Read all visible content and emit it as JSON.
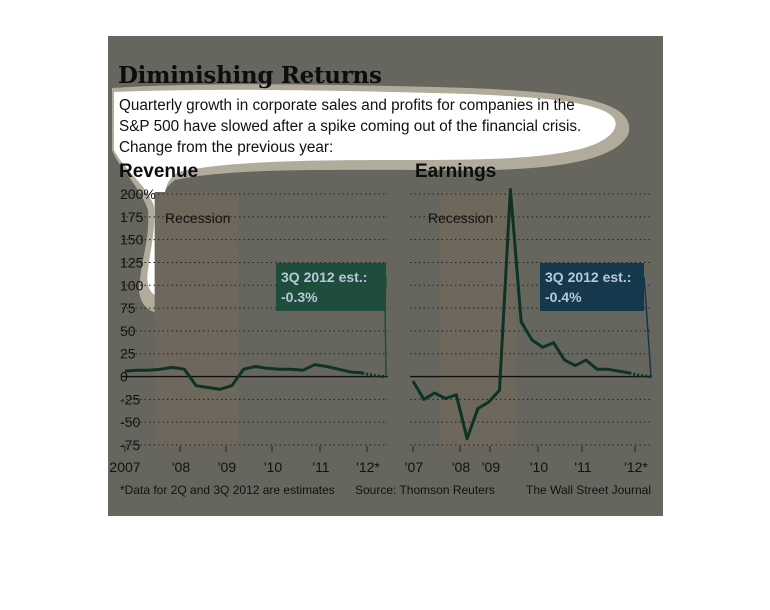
{
  "header": {
    "title": "Diminishing Returns",
    "subtitle_line1": "Quarterly growth in corporate sales and profits for companies in the",
    "subtitle_line2": "S&P 500 have slowed after a spike coming out of the financial crisis.",
    "subtitle_line3": "Change from the previous year:"
  },
  "footer": {
    "note": "*Data for 2Q and 3Q 2012 are estimates",
    "source": "Source: Thomson Reuters",
    "credit": "The Wall Street Journal"
  },
  "colors": {
    "panel_background": "#66665e",
    "recession_band": "#6e675c",
    "line": "#0d3326",
    "callout_revenue": "#1e4d3b",
    "callout_earnings": "#16384d",
    "callout_text": "#b8c8d8"
  },
  "chart_data": [
    {
      "type": "line",
      "title": "Revenue",
      "ylim": [
        -75,
        200
      ],
      "y_ticks": [
        200,
        175,
        150,
        125,
        100,
        75,
        50,
        25,
        0,
        -25,
        -50,
        -75
      ],
      "y_tick_labels": [
        "200%",
        "175",
        "150",
        "125",
        "100",
        "75",
        "50",
        "25",
        "0",
        "-25",
        "-50",
        "-75"
      ],
      "x_tick_labels": [
        "2007",
        "'08",
        "'09",
        "'10",
        "'11",
        "'12*"
      ],
      "shaded_region": {
        "label": "Recession",
        "from": "2007 Q4",
        "to": "2009 Q2"
      },
      "annotation": {
        "label": "3Q 2012 est.:",
        "value": "-0.3%"
      },
      "grid": true,
      "series": [
        {
          "x": [
            "2007 Q1",
            "2007 Q2",
            "2007 Q3",
            "2007 Q4",
            "2008 Q1",
            "2008 Q2",
            "2008 Q3",
            "2008 Q4",
            "2009 Q1",
            "2009 Q2",
            "2009 Q3",
            "2009 Q4",
            "2010 Q1",
            "2010 Q2",
            "2010 Q3",
            "2010 Q4",
            "2011 Q1",
            "2011 Q2",
            "2011 Q3",
            "2011 Q4",
            "2012 Q1",
            "2012 Q2",
            "2012 Q3"
          ],
          "y": [
            6,
            7,
            7,
            8,
            10,
            8,
            -10,
            -12,
            -14,
            -10,
            8,
            11,
            9,
            8,
            8,
            7,
            13,
            11,
            8,
            5,
            4,
            1,
            -0.3
          ],
          "estimated_from": "2012 Q2"
        }
      ]
    },
    {
      "type": "line",
      "title": "Earnings",
      "ylim": [
        -75,
        200
      ],
      "x_tick_labels": [
        "'07",
        "'08",
        "'09",
        "'10",
        "'11",
        "'12*"
      ],
      "shaded_region": {
        "label": "Recession",
        "from": "2007 Q4",
        "to": "2009 Q2"
      },
      "annotation": {
        "label": "3Q 2012 est.:",
        "value": "-0.4%"
      },
      "grid": true,
      "series": [
        {
          "x": [
            "2007 Q1",
            "2007 Q2",
            "2007 Q3",
            "2007 Q4",
            "2008 Q1",
            "2008 Q2",
            "2008 Q3",
            "2008 Q4",
            "2009 Q1",
            "2009 Q2",
            "2009 Q3",
            "2009 Q4",
            "2010 Q1",
            "2010 Q2",
            "2010 Q3",
            "2010 Q4",
            "2011 Q1",
            "2011 Q2",
            "2011 Q3",
            "2011 Q4",
            "2012 Q1",
            "2012 Q2",
            "2012 Q3"
          ],
          "y": [
            -5,
            -25,
            -18,
            -24,
            -20,
            -68,
            -35,
            -28,
            -15,
            205,
            60,
            40,
            32,
            37,
            18,
            12,
            18,
            8,
            8,
            6,
            4,
            1,
            -0.4
          ],
          "estimated_from": "2012 Q2"
        }
      ]
    }
  ]
}
